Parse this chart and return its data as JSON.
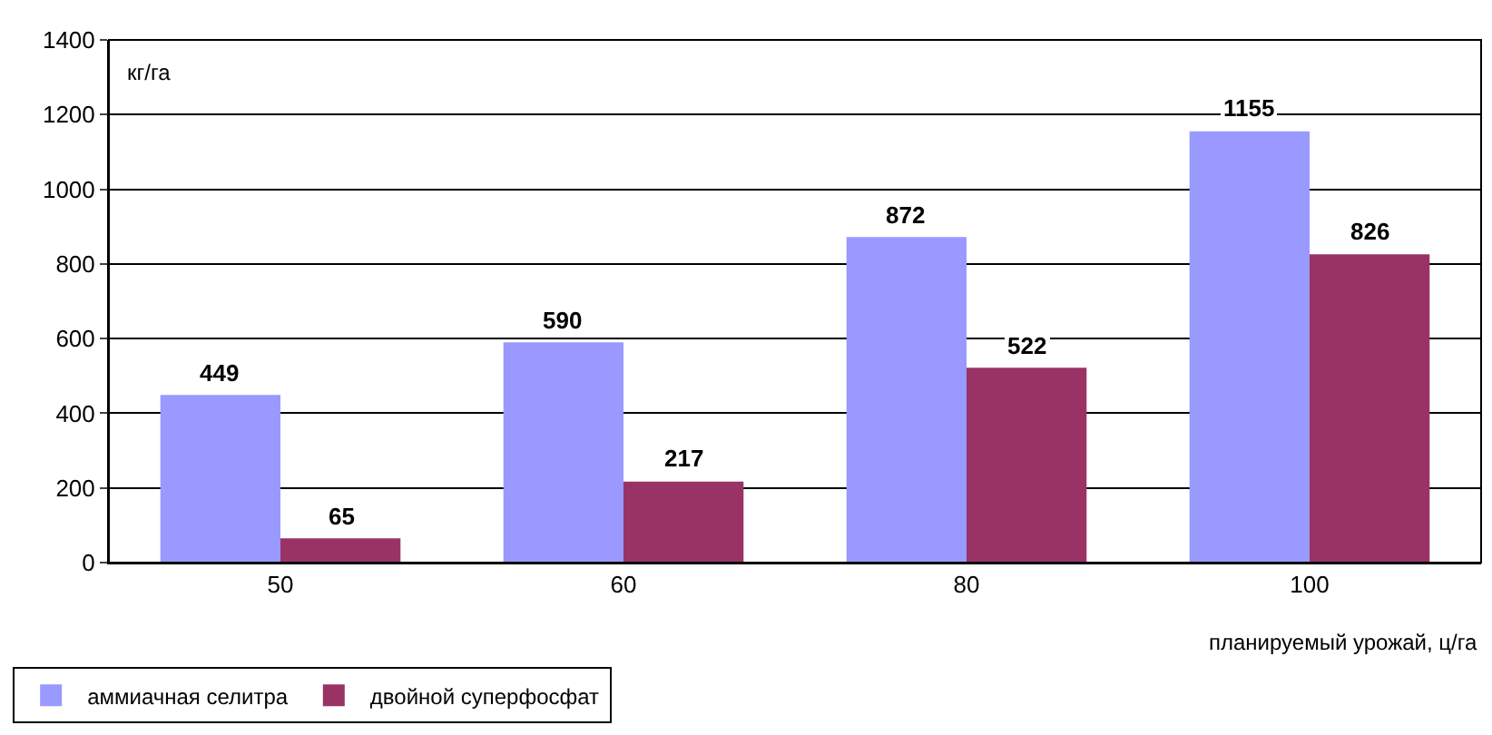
{
  "chart_data": {
    "type": "bar",
    "ylabel": "кг/га",
    "xlabel": "планируемый урожай, ц/га",
    "categories": [
      "50",
      "60",
      "80",
      "100"
    ],
    "series": [
      {
        "name": "аммиачная селитра",
        "color": "#9999ff",
        "values": [
          449,
          590,
          872,
          1155
        ]
      },
      {
        "name": "двойной суперфосфат",
        "color": "#993366",
        "values": [
          65,
          217,
          522,
          826
        ]
      }
    ],
    "ylim": [
      0,
      1400
    ],
    "yticks": [
      0,
      200,
      400,
      600,
      800,
      1000,
      1200,
      1400
    ],
    "grid": "y",
    "legend": "bottom left",
    "data_labels": true
  }
}
